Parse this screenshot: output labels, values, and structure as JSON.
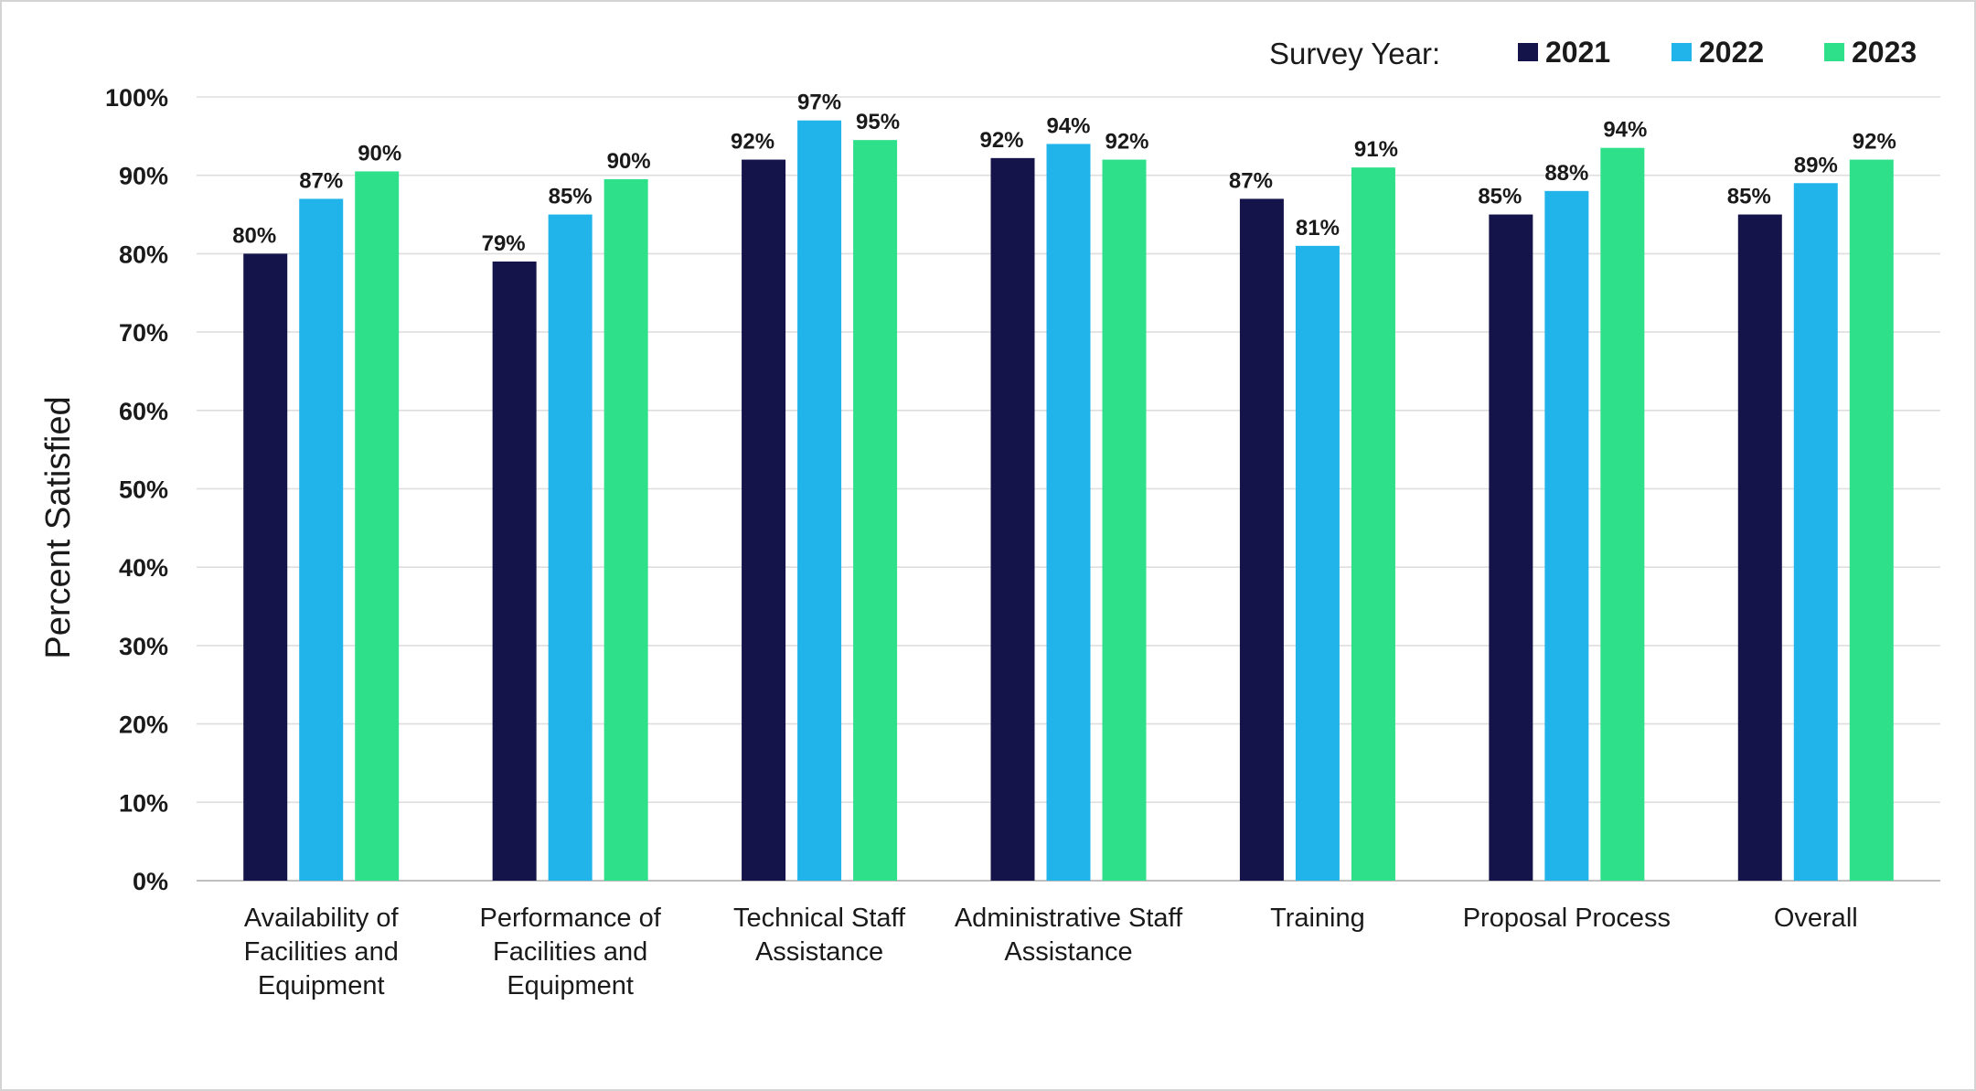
{
  "chart_data": {
    "type": "bar",
    "title": "",
    "xlabel": "",
    "ylabel": "Percent Satisfied",
    "ylim": [
      0,
      100
    ],
    "yticks": [
      "0%",
      "10%",
      "20%",
      "30%",
      "40%",
      "50%",
      "60%",
      "70%",
      "80%",
      "90%",
      "100%"
    ],
    "grid": true,
    "legend_title": "Survey Year:",
    "legend_position": "top-right",
    "categories": [
      [
        "Availability of",
        "Facilities and",
        "Equipment"
      ],
      [
        "Performance of",
        "Facilities and",
        "Equipment"
      ],
      [
        "Technical Staff",
        "Assistance"
      ],
      [
        "Administrative Staff",
        "Assistance"
      ],
      [
        "Training"
      ],
      [
        "Proposal Process"
      ],
      [
        "Overall"
      ]
    ],
    "series": [
      {
        "name": "2021",
        "color": "#14134a",
        "values": [
          80,
          79,
          92,
          92.2,
          87,
          85,
          85
        ],
        "labels": [
          "80%",
          "79%",
          "92%",
          "92%",
          "87%",
          "85%",
          "85%"
        ]
      },
      {
        "name": "2022",
        "color": "#20b4ea",
        "values": [
          87,
          85,
          97,
          94,
          81,
          88,
          89
        ],
        "labels": [
          "87%",
          "85%",
          "97%",
          "94%",
          "81%",
          "88%",
          "89%"
        ]
      },
      {
        "name": "2023",
        "color": "#2ee08a",
        "values": [
          90.5,
          89.5,
          94.5,
          92,
          91,
          93.5,
          92
        ],
        "labels": [
          "90%",
          "90%",
          "95%",
          "92%",
          "91%",
          "94%",
          "92%"
        ]
      }
    ]
  }
}
